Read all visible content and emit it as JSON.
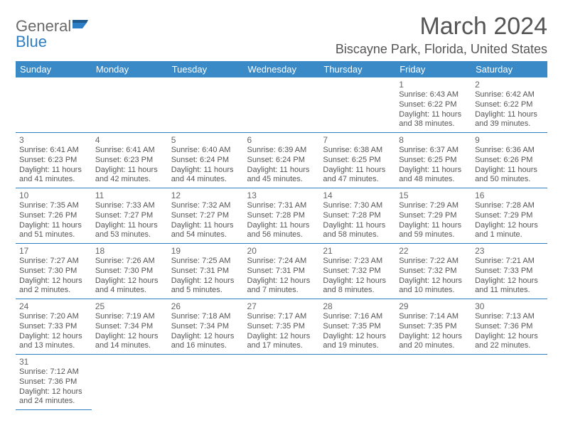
{
  "logo": {
    "general": "General",
    "blue": "Blue"
  },
  "header": {
    "month_title": "March 2024",
    "location": "Biscayne Park, Florida, United States"
  },
  "calendar": {
    "type": "table",
    "header_bg": "#3a8ac8",
    "header_text": "#ffffff",
    "border_color": "#2d7fc5",
    "columns": [
      "Sunday",
      "Monday",
      "Tuesday",
      "Wednesday",
      "Thursday",
      "Friday",
      "Saturday"
    ],
    "first_weekday_index": 5,
    "days": [
      {
        "n": 1,
        "sunrise": "6:43 AM",
        "sunset": "6:22 PM",
        "daylight": "11 hours and 38 minutes."
      },
      {
        "n": 2,
        "sunrise": "6:42 AM",
        "sunset": "6:22 PM",
        "daylight": "11 hours and 39 minutes."
      },
      {
        "n": 3,
        "sunrise": "6:41 AM",
        "sunset": "6:23 PM",
        "daylight": "11 hours and 41 minutes."
      },
      {
        "n": 4,
        "sunrise": "6:41 AM",
        "sunset": "6:23 PM",
        "daylight": "11 hours and 42 minutes."
      },
      {
        "n": 5,
        "sunrise": "6:40 AM",
        "sunset": "6:24 PM",
        "daylight": "11 hours and 44 minutes."
      },
      {
        "n": 6,
        "sunrise": "6:39 AM",
        "sunset": "6:24 PM",
        "daylight": "11 hours and 45 minutes."
      },
      {
        "n": 7,
        "sunrise": "6:38 AM",
        "sunset": "6:25 PM",
        "daylight": "11 hours and 47 minutes."
      },
      {
        "n": 8,
        "sunrise": "6:37 AM",
        "sunset": "6:25 PM",
        "daylight": "11 hours and 48 minutes."
      },
      {
        "n": 9,
        "sunrise": "6:36 AM",
        "sunset": "6:26 PM",
        "daylight": "11 hours and 50 minutes."
      },
      {
        "n": 10,
        "sunrise": "7:35 AM",
        "sunset": "7:26 PM",
        "daylight": "11 hours and 51 minutes."
      },
      {
        "n": 11,
        "sunrise": "7:33 AM",
        "sunset": "7:27 PM",
        "daylight": "11 hours and 53 minutes."
      },
      {
        "n": 12,
        "sunrise": "7:32 AM",
        "sunset": "7:27 PM",
        "daylight": "11 hours and 54 minutes."
      },
      {
        "n": 13,
        "sunrise": "7:31 AM",
        "sunset": "7:28 PM",
        "daylight": "11 hours and 56 minutes."
      },
      {
        "n": 14,
        "sunrise": "7:30 AM",
        "sunset": "7:28 PM",
        "daylight": "11 hours and 58 minutes."
      },
      {
        "n": 15,
        "sunrise": "7:29 AM",
        "sunset": "7:29 PM",
        "daylight": "11 hours and 59 minutes."
      },
      {
        "n": 16,
        "sunrise": "7:28 AM",
        "sunset": "7:29 PM",
        "daylight": "12 hours and 1 minute."
      },
      {
        "n": 17,
        "sunrise": "7:27 AM",
        "sunset": "7:30 PM",
        "daylight": "12 hours and 2 minutes."
      },
      {
        "n": 18,
        "sunrise": "7:26 AM",
        "sunset": "7:30 PM",
        "daylight": "12 hours and 4 minutes."
      },
      {
        "n": 19,
        "sunrise": "7:25 AM",
        "sunset": "7:31 PM",
        "daylight": "12 hours and 5 minutes."
      },
      {
        "n": 20,
        "sunrise": "7:24 AM",
        "sunset": "7:31 PM",
        "daylight": "12 hours and 7 minutes."
      },
      {
        "n": 21,
        "sunrise": "7:23 AM",
        "sunset": "7:32 PM",
        "daylight": "12 hours and 8 minutes."
      },
      {
        "n": 22,
        "sunrise": "7:22 AM",
        "sunset": "7:32 PM",
        "daylight": "12 hours and 10 minutes."
      },
      {
        "n": 23,
        "sunrise": "7:21 AM",
        "sunset": "7:33 PM",
        "daylight": "12 hours and 11 minutes."
      },
      {
        "n": 24,
        "sunrise": "7:20 AM",
        "sunset": "7:33 PM",
        "daylight": "12 hours and 13 minutes."
      },
      {
        "n": 25,
        "sunrise": "7:19 AM",
        "sunset": "7:34 PM",
        "daylight": "12 hours and 14 minutes."
      },
      {
        "n": 26,
        "sunrise": "7:18 AM",
        "sunset": "7:34 PM",
        "daylight": "12 hours and 16 minutes."
      },
      {
        "n": 27,
        "sunrise": "7:17 AM",
        "sunset": "7:35 PM",
        "daylight": "12 hours and 17 minutes."
      },
      {
        "n": 28,
        "sunrise": "7:16 AM",
        "sunset": "7:35 PM",
        "daylight": "12 hours and 19 minutes."
      },
      {
        "n": 29,
        "sunrise": "7:14 AM",
        "sunset": "7:35 PM",
        "daylight": "12 hours and 20 minutes."
      },
      {
        "n": 30,
        "sunrise": "7:13 AM",
        "sunset": "7:36 PM",
        "daylight": "12 hours and 22 minutes."
      },
      {
        "n": 31,
        "sunrise": "7:12 AM",
        "sunset": "7:36 PM",
        "daylight": "12 hours and 24 minutes."
      }
    ],
    "labels": {
      "sunrise": "Sunrise:",
      "sunset": "Sunset:",
      "daylight": "Daylight:"
    }
  }
}
